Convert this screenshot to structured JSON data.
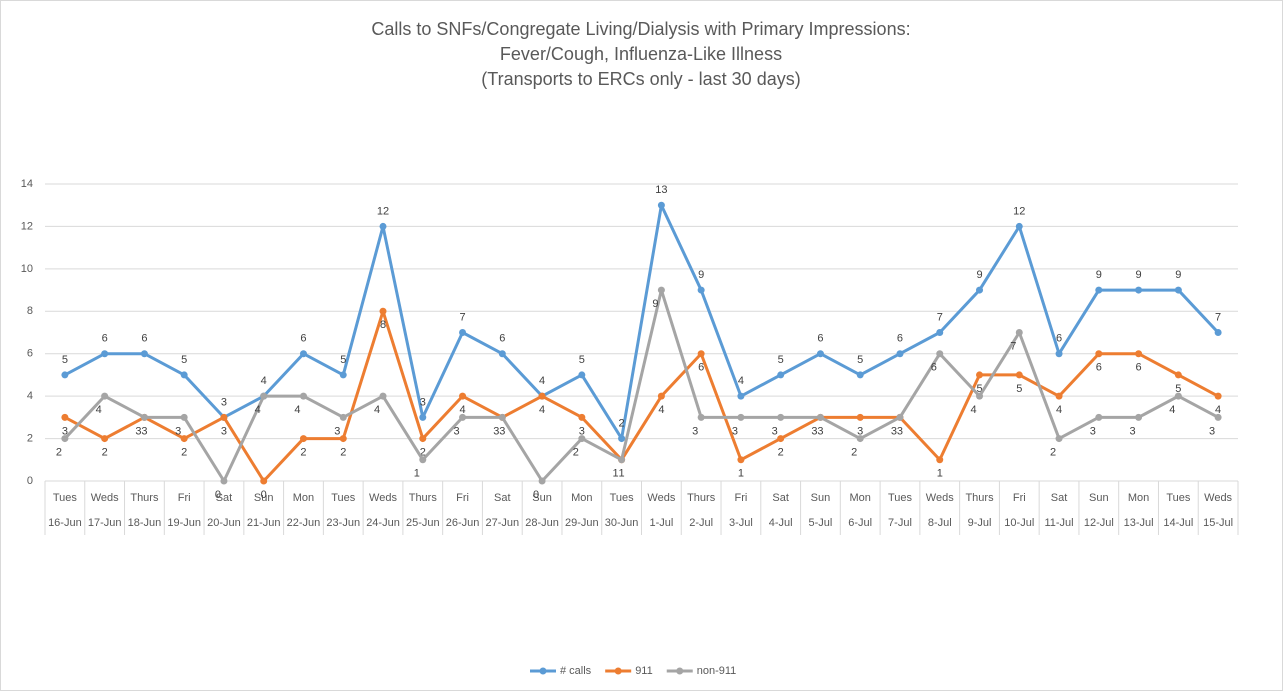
{
  "chart_data": {
    "type": "line",
    "title": [
      "Calls to SNFs/Congregate Living/Dialysis with Primary Impressions:",
      "Fever/Cough, Influenza-Like Illness",
      "(Transports to ERCs only - last 30 days)"
    ],
    "categories": [
      "Tues",
      "Weds",
      "Thurs",
      "Fri",
      "Sat",
      "Sun",
      "Mon",
      "Tues",
      "Weds",
      "Thurs",
      "Fri",
      "Sat",
      "Sun",
      "Mon",
      "Tues",
      "Weds",
      "Thurs",
      "Fri",
      "Sat",
      "Sun",
      "Mon",
      "Tues",
      "Weds",
      "Thurs",
      "Fri",
      "Sat",
      "Sun",
      "Mon",
      "Tues",
      "Weds"
    ],
    "category_dates": [
      "16-Jun",
      "17-Jun",
      "18-Jun",
      "19-Jun",
      "20-Jun",
      "21-Jun",
      "22-Jun",
      "23-Jun",
      "24-Jun",
      "25-Jun",
      "26-Jun",
      "27-Jun",
      "28-Jun",
      "29-Jun",
      "30-Jun",
      "1-Jul",
      "2-Jul",
      "3-Jul",
      "4-Jul",
      "5-Jul",
      "6-Jul",
      "7-Jul",
      "8-Jul",
      "9-Jul",
      "10-Jul",
      "11-Jul",
      "12-Jul",
      "13-Jul",
      "14-Jul",
      "15-Jul"
    ],
    "series": [
      {
        "name": "# calls",
        "color": "#5b9bd5",
        "values": [
          5,
          6,
          6,
          5,
          3,
          4,
          6,
          5,
          12,
          3,
          7,
          6,
          4,
          5,
          2,
          13,
          9,
          4,
          5,
          6,
          5,
          6,
          7,
          9,
          12,
          6,
          9,
          9,
          9,
          7
        ]
      },
      {
        "name": "911",
        "color": "#ed7d31",
        "values": [
          3,
          2,
          3,
          2,
          3,
          0,
          2,
          2,
          8,
          2,
          4,
          3,
          4,
          3,
          1,
          4,
          6,
          1,
          2,
          3,
          3,
          3,
          1,
          5,
          5,
          4,
          6,
          6,
          5,
          4
        ]
      },
      {
        "name": "non-911",
        "color": "#a5a5a5",
        "values": [
          2,
          4,
          3,
          3,
          0,
          4,
          4,
          3,
          4,
          1,
          3,
          3,
          0,
          2,
          1,
          9,
          3,
          3,
          3,
          3,
          2,
          3,
          6,
          4,
          7,
          2,
          3,
          3,
          4,
          3
        ]
      }
    ],
    "ylim": [
      0,
      14
    ],
    "yticks": [
      0,
      2,
      4,
      6,
      8,
      10,
      12,
      14
    ],
    "grid": true,
    "legend": "bottom"
  }
}
